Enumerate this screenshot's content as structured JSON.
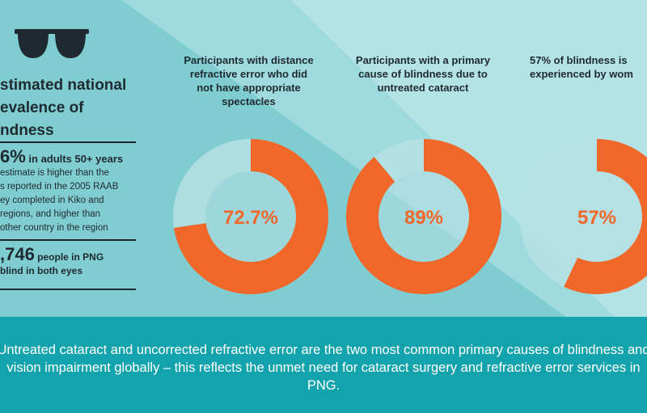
{
  "colors": {
    "accent": "#f0672a",
    "track": "#b6e0e3",
    "bg": "#7fcdd1",
    "footer": "#13a3ad"
  },
  "left_panel": {
    "icon": "sunglasses-icon",
    "heading": "stimated national\nevalence of\nndness",
    "stat1_value": "6%",
    "stat1_text": " in adults 50+ years",
    "stat1_desc": " estimate is higher than the\ns reported in the 2005 RAAB\ney completed in Kiko and\n regions, and higher than\nother country in the region",
    "stat2_value": ",746",
    "stat2_text": " people in PNG\nblind in both eyes"
  },
  "chart_data": [
    {
      "type": "pie",
      "title": "Participants with distance\nrefractive error who did\nnot have appropriate\nspectacles",
      "values": [
        72.7,
        27.3
      ],
      "label": "72.7%"
    },
    {
      "type": "pie",
      "title": "Participants with a primary\ncause of blindness due to\nuntreated cataract",
      "values": [
        89,
        11
      ],
      "label": "89%"
    },
    {
      "type": "pie",
      "title": "57% of blindness is\nexperienced by wom",
      "values": [
        57,
        43
      ],
      "label": "57%"
    }
  ],
  "footer": {
    "text": "Untreated cataract and uncorrected refractive error are the two most common primary causes of blindness and vision impairment globally – this reflects the unmet need for cataract surgery and refractive error services in PNG."
  }
}
